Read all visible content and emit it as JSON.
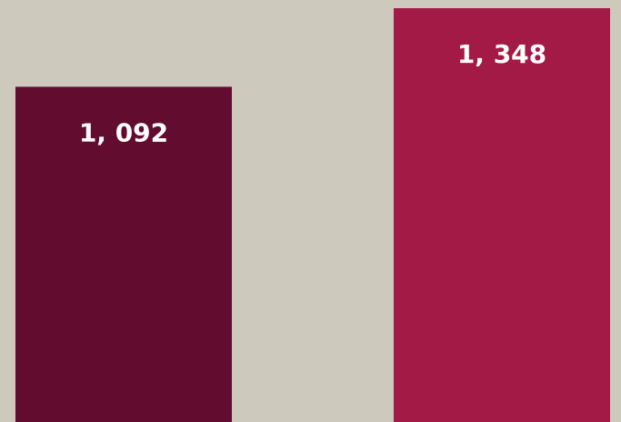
{
  "chart_data": {
    "type": "bar",
    "categories": [
      null,
      null
    ],
    "values": [
      1092,
      1348
    ],
    "value_labels": [
      "1, 092",
      "1, 348"
    ],
    "colors": [
      "#620c2f",
      "#a31a46"
    ],
    "background": "#cdcabd"
  }
}
